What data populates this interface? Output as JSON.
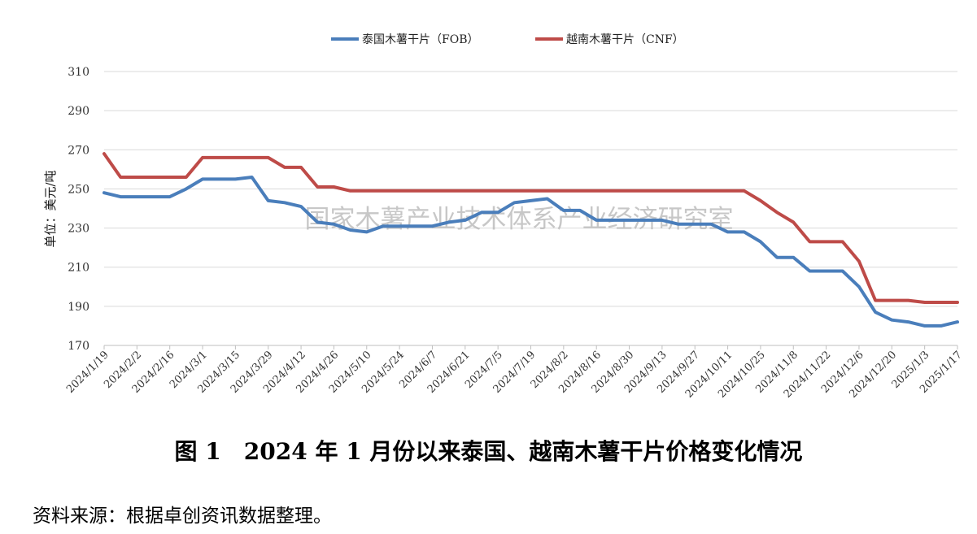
{
  "chart_data": {
    "type": "line",
    "ylabel": "单位：美元/吨",
    "ylim": [
      170,
      310
    ],
    "yticks": [
      170,
      190,
      210,
      230,
      250,
      270,
      290,
      310
    ],
    "grid": "horizontal",
    "legend_position": "top",
    "x_tick_labels": [
      "2024/1/19",
      "2024/2/2",
      "2024/2/16",
      "2024/3/1",
      "2024/3/15",
      "2024/3/29",
      "2024/4/12",
      "2024/4/26",
      "2024/5/10",
      "2024/5/24",
      "2024/6/7",
      "2024/6/21",
      "2024/7/5",
      "2024/7/19",
      "2024/8/2",
      "2024/8/16",
      "2024/8/30",
      "2024/9/13",
      "2024/9/27",
      "2024/10/11",
      "2024/10/25",
      "2024/11/8",
      "2024/11/22",
      "2024/12/6",
      "2024/12/20",
      "2025/1/3",
      "2025/1/17"
    ],
    "x": [
      "2024/1/19",
      "2024/1/26",
      "2024/2/2",
      "2024/2/9",
      "2024/2/16",
      "2024/2/23",
      "2024/3/1",
      "2024/3/8",
      "2024/3/15",
      "2024/3/22",
      "2024/3/29",
      "2024/4/5",
      "2024/4/12",
      "2024/4/19",
      "2024/4/26",
      "2024/5/3",
      "2024/5/10",
      "2024/5/17",
      "2024/5/24",
      "2024/5/31",
      "2024/6/7",
      "2024/6/14",
      "2024/6/21",
      "2024/6/28",
      "2024/7/5",
      "2024/7/12",
      "2024/7/19",
      "2024/7/26",
      "2024/8/2",
      "2024/8/9",
      "2024/8/16",
      "2024/8/23",
      "2024/8/30",
      "2024/9/6",
      "2024/9/13",
      "2024/9/20",
      "2024/9/27",
      "2024/10/4",
      "2024/10/11",
      "2024/10/18",
      "2024/10/25",
      "2024/11/1",
      "2024/11/8",
      "2024/11/15",
      "2024/11/22",
      "2024/11/29",
      "2024/12/6",
      "2024/12/13",
      "2024/12/20",
      "2024/12/27",
      "2025/1/3",
      "2025/1/10",
      "2025/1/17"
    ],
    "series": [
      {
        "name": "泰国木薯干片（FOB）",
        "color": "#4a7ebb",
        "values": [
          248,
          246,
          246,
          246,
          246,
          250,
          255,
          255,
          255,
          256,
          244,
          243,
          241,
          233,
          232,
          229,
          228,
          231,
          231,
          231,
          231,
          233,
          234,
          238,
          238,
          243,
          244,
          245,
          239,
          239,
          234,
          234,
          234,
          234,
          234,
          232,
          232,
          232,
          228,
          228,
          223,
          215,
          215,
          208,
          208,
          208,
          200,
          187,
          183,
          182,
          180,
          180,
          182
        ]
      },
      {
        "name": "越南木薯干片（CNF）",
        "color": "#be4b48",
        "values": [
          268,
          256,
          256,
          256,
          256,
          256,
          266,
          266,
          266,
          266,
          266,
          261,
          261,
          251,
          251,
          249,
          249,
          249,
          249,
          249,
          249,
          249,
          249,
          249,
          249,
          249,
          249,
          249,
          249,
          249,
          249,
          249,
          249,
          249,
          249,
          249,
          249,
          249,
          249,
          249,
          244,
          238,
          233,
          223,
          223,
          223,
          213,
          193,
          193,
          193,
          192,
          192,
          192
        ]
      }
    ],
    "watermark": "国家木薯产业技术体系产业经济研究室",
    "caption": "图 1　2024 年 1 月份以来泰国、越南木薯干片价格变化情况"
  },
  "footer": {
    "source": "资料来源：根据卓创资讯数据整理。"
  }
}
